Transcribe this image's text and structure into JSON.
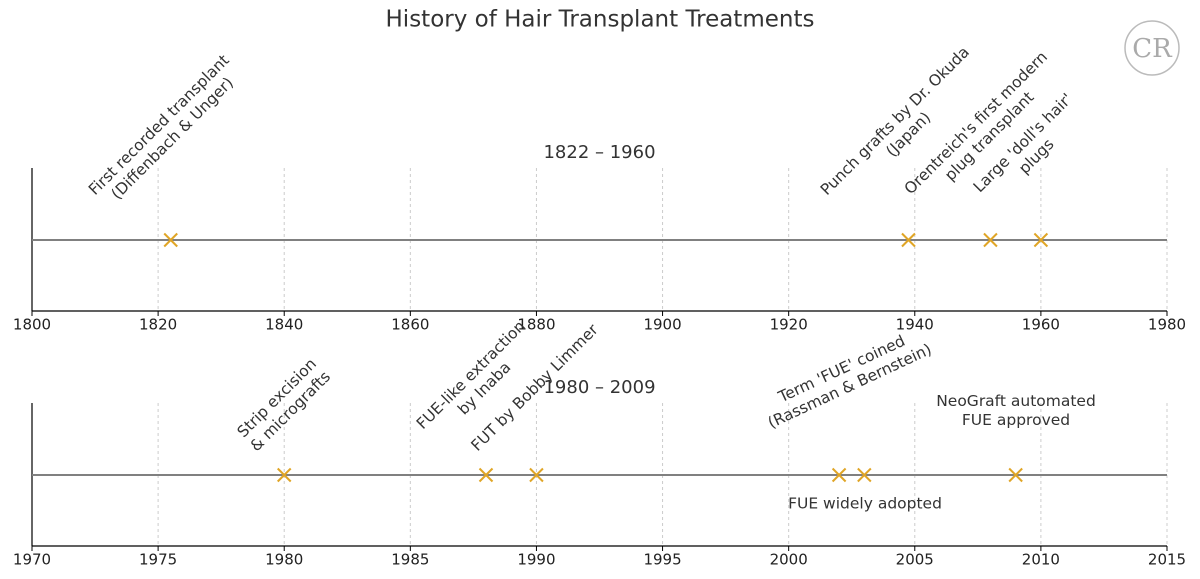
{
  "title": "History of Hair Transplant Treatments",
  "logo": "CR",
  "chart_data": [
    {
      "type": "timeline",
      "title": "1822 – 1960",
      "x": [
        1822,
        1939,
        1952,
        1960
      ],
      "labels": [
        [
          "First recorded transplant",
          "(Diffenbach & Unger)"
        ],
        [
          "Punch grafts by Dr. Okuda",
          "(Japan)"
        ],
        [
          "Orentreich's first modern",
          "plug transplant"
        ],
        [
          "Large 'doll's hair'",
          "plugs"
        ]
      ],
      "xlim": [
        1800,
        1980
      ],
      "xticks": [
        1800,
        1820,
        1840,
        1860,
        1880,
        1900,
        1920,
        1940,
        1960,
        1980
      ],
      "grid": true,
      "color": "#e0a526",
      "line_color": "#808080"
    },
    {
      "type": "timeline",
      "title": "1980 – 2009",
      "x": [
        1980,
        1988,
        1990,
        2002,
        2003,
        2009
      ],
      "labels": [
        [
          "Strip excision",
          "& micrografts"
        ],
        [
          "FUE-like extraction",
          "by Inaba"
        ],
        [
          "FUT by Bobby Limmer"
        ],
        [
          "Term 'FUE' coined",
          "(Rassman & Bernstein)"
        ],
        [
          "FUE widely adopted"
        ],
        [
          "NeoGraft automated",
          "FUE approved"
        ]
      ],
      "xlim": [
        1970,
        2015
      ],
      "xticks": [
        1970,
        1975,
        1980,
        1985,
        1990,
        1995,
        2000,
        2005,
        2010,
        2015
      ],
      "grid": true,
      "color": "#e0a526",
      "line_color": "#808080"
    }
  ]
}
